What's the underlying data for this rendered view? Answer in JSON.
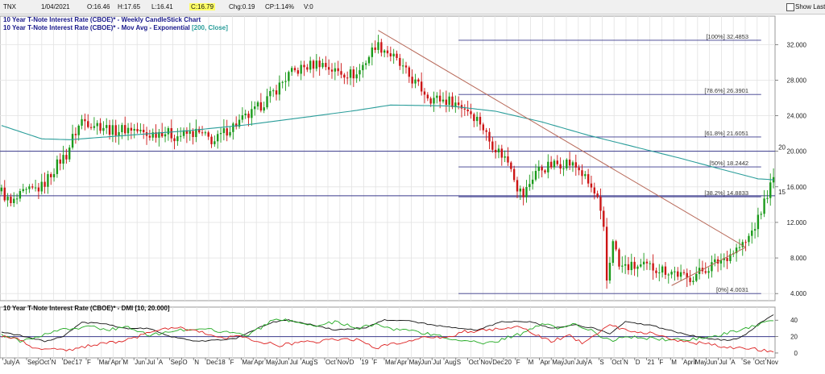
{
  "header": {
    "symbol": "TNX",
    "date": "1/04/2021",
    "open": "O:16.46",
    "high": "H:17.65",
    "low": "L:16.41",
    "close": "C:16.79",
    "change": "Chg:0.19",
    "change_pct": "CP:1.14%",
    "volume": "V:0",
    "show_last_label": "Show Last"
  },
  "titles": {
    "line1": "10 Year T-Note Interest Rate (CBOE)* - Weekly CandleStick Chart",
    "line2_prefix": "10 Year T-Note Interest Rate (CBOE)* - Mov Avg - Exponential ",
    "line2_params": "[200, Close]",
    "dmi_title": "10 Year T-Note Interest Rate (CBOE)* - DMI [10, 20.000]"
  },
  "colors": {
    "up": "#1a9a1a",
    "down": "#cc1414",
    "ema": "#2a9d9a",
    "fib": "#3a3a8c",
    "trend": "#b86a5a",
    "hline": "#3a3a8c",
    "title": "#1a1a8c"
  },
  "chart_data": [
    {
      "type": "candlestick",
      "title": "10 Year T-Note Interest Rate (CBOE)* - Weekly CandleStick Chart",
      "interval": "weekly",
      "ylim": [
        3.2,
        35.2
      ],
      "y_ticks": [
        "32.000",
        "28.000",
        "24.000",
        "20.000",
        "16.000",
        "12.000",
        "8.000",
        "4.000"
      ],
      "x_labels": [
        "July",
        "A",
        "Sep",
        "Oct",
        "N",
        "Dec",
        "17",
        "F",
        "Mar",
        "Apr",
        "M",
        "Jun",
        "Jul",
        "A",
        "Sep",
        "O",
        "N",
        "Dec",
        "18",
        "F",
        "Mar",
        "Apr",
        "May",
        "Jun",
        "Jul",
        "Aug",
        "S",
        "Oct",
        "Nov",
        "D",
        "19",
        "F",
        "Mar",
        "Apr",
        "May",
        "Jun",
        "Jul",
        "Aug",
        "S",
        "Oct",
        "Nov",
        "Dec",
        "20",
        "F",
        "M",
        "Apr",
        "May",
        "Jun",
        "July",
        "A",
        "S",
        "Oct",
        "N",
        "D",
        "21",
        "F",
        "M",
        "April",
        "May",
        "Jun",
        "Jul",
        "A",
        "Se",
        "Oct",
        "Nov"
      ],
      "price_path": [
        [
          0,
          15.5
        ],
        [
          3,
          14.0
        ],
        [
          7,
          15.2
        ],
        [
          13,
          16.0
        ],
        [
          19,
          19.0
        ],
        [
          21,
          19.6
        ],
        [
          23,
          21.5
        ],
        [
          26,
          23.5
        ],
        [
          33,
          22.8
        ],
        [
          36,
          22.3
        ],
        [
          42,
          22.6
        ],
        [
          47,
          21.8
        ],
        [
          52,
          22.3
        ],
        [
          56,
          21.7
        ],
        [
          63,
          22.1
        ],
        [
          69,
          21.1
        ],
        [
          73,
          22.4
        ],
        [
          81,
          24.2
        ],
        [
          87,
          26.2
        ],
        [
          93,
          28.6
        ],
        [
          97,
          29.3
        ],
        [
          103,
          30.0
        ],
        [
          108,
          29.0
        ],
        [
          115,
          28.6
        ],
        [
          118,
          30.2
        ],
        [
          120,
          31.3
        ],
        [
          121,
          32.0
        ],
        [
          124,
          31.5
        ],
        [
          127,
          30.5
        ],
        [
          131,
          28.8
        ],
        [
          135,
          27.3
        ],
        [
          139,
          26.0
        ],
        [
          146,
          25.6
        ],
        [
          151,
          24.7
        ],
        [
          155,
          23.3
        ],
        [
          158,
          21.2
        ],
        [
          161,
          20.0
        ],
        [
          165,
          18.5
        ],
        [
          167,
          16.0
        ],
        [
          169,
          15.0
        ],
        [
          171,
          16.4
        ],
        [
          173,
          17.8
        ],
        [
          178,
          18.4
        ],
        [
          183,
          18.8
        ],
        [
          187,
          18.0
        ],
        [
          191,
          15.8
        ],
        [
          193,
          14.5
        ],
        [
          195,
          11.0
        ],
        [
          196,
          5.4
        ],
        [
          197,
          7.6
        ],
        [
          198,
          10.3
        ],
        [
          200,
          7.0
        ],
        [
          210,
          7.0
        ],
        [
          218,
          6.4
        ],
        [
          222,
          5.6
        ],
        [
          228,
          6.8
        ],
        [
          234,
          8.0
        ],
        [
          238,
          9.0
        ],
        [
          241,
          9.7
        ],
        [
          245,
          12.3
        ],
        [
          248,
          15.3
        ],
        [
          250,
          16.8
        ]
      ],
      "ema200_path": [
        [
          0,
          22.9
        ],
        [
          13,
          21.4
        ],
        [
          22,
          21.3
        ],
        [
          60,
          22.3
        ],
        [
          80,
          23.0
        ],
        [
          100,
          23.9
        ],
        [
          115,
          24.6
        ],
        [
          126,
          25.2
        ],
        [
          145,
          25.1
        ],
        [
          160,
          24.5
        ],
        [
          175,
          23.3
        ],
        [
          190,
          21.8
        ],
        [
          205,
          20.5
        ],
        [
          220,
          19.2
        ],
        [
          235,
          17.8
        ],
        [
          245,
          16.9
        ],
        [
          250,
          16.8
        ]
      ],
      "fib_levels": [
        {
          "label": "[100%] 32.4853",
          "value": 32.4853
        },
        {
          "label": "[78.6%] 26.3901",
          "value": 26.3901
        },
        {
          "label": "[61.8%] 21.6051",
          "value": 21.6051
        },
        {
          "label": "[50%] 18.2442",
          "value": 18.2442
        },
        {
          "label": "[38.2%] 14.8833",
          "value": 14.8833
        },
        {
          "label": "[0%] 4.0031",
          "value": 4.0031
        }
      ],
      "horizontal_lines": [
        {
          "label": "20",
          "value": 20.0
        },
        {
          "label": "15",
          "value": 15.0
        }
      ],
      "trendline_upper": [
        [
          122,
          33.6
        ],
        [
          241,
          9.2
        ]
      ],
      "trendline_lower": [
        [
          217,
          4.9
        ],
        [
          241,
          9.2
        ]
      ]
    },
    {
      "type": "line",
      "title": "10 Year T-Note Interest Rate (CBOE)* - DMI [10, 20.000]",
      "ylim": [
        -2,
        52
      ],
      "y_ticks": [
        "40",
        "20",
        "0"
      ],
      "threshold": 20,
      "series": [
        {
          "color": "#111111",
          "values": [
            [
              0,
              25
            ],
            [
              8,
              20
            ],
            [
              14,
              14
            ],
            [
              20,
              20
            ],
            [
              26,
              37
            ],
            [
              33,
              36
            ],
            [
              40,
              30
            ],
            [
              48,
              30
            ],
            [
              55,
              20
            ],
            [
              63,
              14
            ],
            [
              71,
              16
            ],
            [
              76,
              18
            ],
            [
              83,
              30
            ],
            [
              88,
              38
            ],
            [
              93,
              40
            ],
            [
              100,
              35
            ],
            [
              108,
              28
            ],
            [
              118,
              31
            ],
            [
              124,
              40
            ],
            [
              130,
              40
            ],
            [
              140,
              34
            ],
            [
              148,
              30
            ],
            [
              154,
              28
            ],
            [
              162,
              38
            ],
            [
              172,
              38
            ],
            [
              178,
              30
            ],
            [
              186,
              34
            ],
            [
              192,
              30
            ],
            [
              197,
              24
            ],
            [
              202,
              38
            ],
            [
              210,
              34
            ],
            [
              220,
              24
            ],
            [
              228,
              18
            ],
            [
              236,
              15
            ],
            [
              241,
              22
            ],
            [
              246,
              38
            ],
            [
              250,
              46
            ]
          ]
        },
        {
          "color": "#22aa22",
          "values": [
            [
              0,
              22
            ],
            [
              6,
              15
            ],
            [
              12,
              20
            ],
            [
              18,
              27
            ],
            [
              24,
              30
            ],
            [
              28,
              34
            ],
            [
              34,
              28
            ],
            [
              40,
              32
            ],
            [
              48,
              22
            ],
            [
              55,
              26
            ],
            [
              62,
              30
            ],
            [
              70,
              27
            ],
            [
              76,
              25
            ],
            [
              80,
              21
            ],
            [
              86,
              36
            ],
            [
              90,
              42
            ],
            [
              96,
              36
            ],
            [
              102,
              32
            ],
            [
              108,
              38
            ],
            [
              116,
              30
            ],
            [
              121,
              36
            ],
            [
              125,
              30
            ],
            [
              132,
              28
            ],
            [
              140,
              22
            ],
            [
              148,
              16
            ],
            [
              155,
              12
            ],
            [
              160,
              14
            ],
            [
              165,
              20
            ],
            [
              170,
              25
            ],
            [
              175,
              37
            ],
            [
              180,
              31
            ],
            [
              186,
              36
            ],
            [
              191,
              27
            ],
            [
              194,
              21
            ],
            [
              198,
              16
            ],
            [
              204,
              20
            ],
            [
              212,
              17
            ],
            [
              220,
              16
            ],
            [
              228,
              18
            ],
            [
              233,
              22
            ],
            [
              238,
              27
            ],
            [
              243,
              32
            ],
            [
              247,
              38
            ],
            [
              250,
              41
            ]
          ]
        },
        {
          "color": "#dd2222",
          "values": [
            [
              0,
              20
            ],
            [
              6,
              17
            ],
            [
              10,
              7
            ],
            [
              16,
              5
            ],
            [
              22,
              3
            ],
            [
              26,
              7
            ],
            [
              32,
              12
            ],
            [
              38,
              14
            ],
            [
              44,
              20
            ],
            [
              50,
              26
            ],
            [
              56,
              32
            ],
            [
              62,
              28
            ],
            [
              68,
              22
            ],
            [
              72,
              18
            ],
            [
              78,
              20
            ],
            [
              84,
              14
            ],
            [
              90,
              9
            ],
            [
              96,
              13
            ],
            [
              102,
              14
            ],
            [
              108,
              17
            ],
            [
              116,
              16
            ],
            [
              121,
              6
            ],
            [
              126,
              10
            ],
            [
              132,
              14
            ],
            [
              138,
              20
            ],
            [
              144,
              19
            ],
            [
              150,
              26
            ],
            [
              156,
              28
            ],
            [
              162,
              30
            ],
            [
              168,
              32
            ],
            [
              174,
              20
            ],
            [
              178,
              15
            ],
            [
              184,
              21
            ],
            [
              188,
              13
            ],
            [
              192,
              22
            ],
            [
              197,
              34
            ],
            [
              202,
              28
            ],
            [
              210,
              24
            ],
            [
              218,
              16
            ],
            [
              226,
              12
            ],
            [
              234,
              8
            ],
            [
              240,
              6
            ],
            [
              246,
              4
            ],
            [
              250,
              2
            ]
          ]
        }
      ]
    }
  ]
}
